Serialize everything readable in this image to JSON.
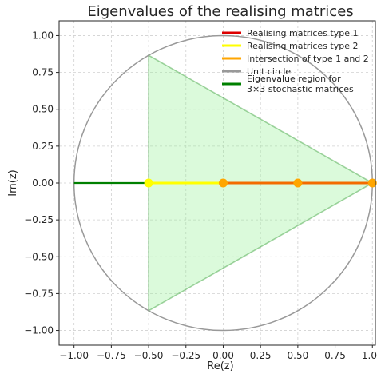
{
  "chart_data": {
    "type": "scatter",
    "title": "Eigenvalues of the realising matrices",
    "xlabel": "Re(z)",
    "ylabel": "Im(z)",
    "xlim": [
      -1.1,
      1.02
    ],
    "ylim": [
      -1.1,
      1.1
    ],
    "x_ticks": [
      -1.0,
      -0.75,
      -0.5,
      -0.25,
      0.0,
      0.25,
      0.5,
      0.75,
      1.0
    ],
    "y_ticks": [
      -1.0,
      -0.75,
      -0.5,
      -0.25,
      0.0,
      0.25,
      0.5,
      0.75,
      1.0
    ],
    "x_tick_labels": [
      "−1.00",
      "−0.75",
      "−0.50",
      "−0.25",
      "0.00",
      "0.25",
      "0.50",
      "0.75",
      "1.00"
    ],
    "y_tick_labels": [
      "−1.00",
      "−0.75",
      "−0.50",
      "−0.25",
      "0.00",
      "0.25",
      "0.50",
      "0.75",
      "1.00"
    ],
    "grid": true,
    "legend_position": "top-right",
    "series": [
      {
        "name": "Realising matrices type 1",
        "kind": "line",
        "color": "#dd0000",
        "x": [
          0.0,
          1.0
        ],
        "y": [
          0.0,
          0.0
        ]
      },
      {
        "name": "Realising matrices type 2",
        "kind": "line",
        "color": "#ffff00",
        "x": [
          -0.5,
          0.0
        ],
        "y": [
          0.0,
          0.0
        ]
      },
      {
        "name": "Intersection of type 1 and 2",
        "kind": "points",
        "color": "#ffa500",
        "x": [
          0.0,
          0.5,
          1.0
        ],
        "y": [
          0.0,
          0.0,
          0.0
        ]
      },
      {
        "name": "Unit circle",
        "kind": "circle",
        "color": "#999999",
        "center": [
          0.0,
          0.0
        ],
        "radius": 1.0
      },
      {
        "name": "Eigenvalue region for\n3×3 stochastic matrices",
        "kind": "region",
        "color": "#008000",
        "fill": "#90ee90",
        "polygon": [
          [
            1.0,
            0.0
          ],
          [
            -0.5,
            0.866
          ],
          [
            -0.5,
            -0.866
          ]
        ],
        "segment": {
          "x": [
            -1.0,
            -0.5
          ],
          "y": [
            0.0,
            0.0
          ]
        }
      }
    ],
    "extra_markers": [
      {
        "x": -0.5,
        "y": 0.0,
        "color": "#ffff00"
      }
    ]
  }
}
